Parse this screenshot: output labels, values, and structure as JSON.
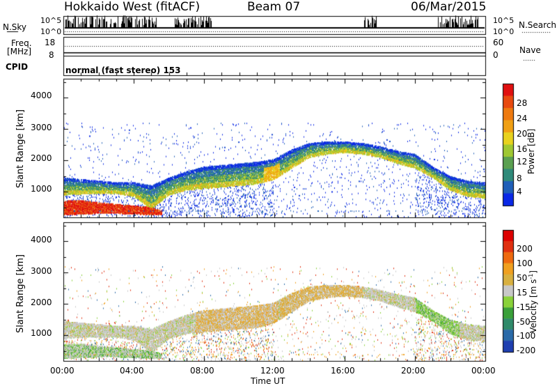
{
  "header": {
    "station": "Hokkaido West (fitACF)",
    "beam": "Beam 07",
    "date": "06/Mar/2015"
  },
  "status_panel": {
    "nsky_label": "N.Sky",
    "nsky_ticks": [
      "10^5",
      "10^0"
    ],
    "nsearch_label": "N.Search",
    "freq_label_1": "Freq.",
    "freq_label_2": "[MHz]",
    "freq_ticks": [
      "18",
      "8"
    ],
    "nave_label": "Nave",
    "nave_ticks": [
      "60",
      "0"
    ],
    "cpid_label": "CPID",
    "cpid_text": "normal (fast stereo) 153"
  },
  "axes": {
    "ylabel_top": "Slant Range [km]",
    "ylabel_bottom": "Slant Range [km]",
    "xlabel": "Time UT",
    "x_ticks": [
      "00:00",
      "04:00",
      "08:00",
      "12:00",
      "16:00",
      "20:00",
      "00:00"
    ],
    "y_ticks": [
      "1000",
      "2000",
      "3000",
      "4000"
    ]
  },
  "colorbars": {
    "power": {
      "label": "Power [dB]",
      "ticks": [
        "4",
        "8",
        "12",
        "16",
        "20",
        "24",
        "28"
      ],
      "colors": [
        "#0a28e6",
        "#1f5fb8",
        "#2f8a7a",
        "#5aa050",
        "#9fc832",
        "#e8d21e",
        "#f0a014",
        "#ee7a10",
        "#e84a10",
        "#e01010"
      ]
    },
    "velocity": {
      "label": "Velocity [m s",
      "label_sup": "-1",
      "label_end": "]",
      "ticks": [
        "200",
        "100",
        "50",
        "15",
        "-15",
        "-50",
        "-100",
        "-200"
      ],
      "colors": [
        "#1f3fb0",
        "#2a6aa8",
        "#2f8a6a",
        "#3aa03a",
        "#8ad23a",
        "#c8c8c8",
        "#d8b040",
        "#f0a020",
        "#ee6a10",
        "#e03010",
        "#dd0000"
      ]
    }
  },
  "chart_data": [
    {
      "type": "heatmap",
      "title": "Power",
      "xlabel": "Time UT",
      "ylabel": "Slant Range [km]",
      "xlim": [
        0,
        24
      ],
      "ylim": [
        180,
        4600
      ],
      "colorbar": "Power [dB]",
      "colorbar_range": [
        0,
        30
      ],
      "backscatter_band": {
        "time_h": [
          0,
          1,
          2,
          3,
          4,
          5,
          6,
          7,
          8,
          9,
          10,
          11,
          12,
          13,
          14,
          15,
          16,
          17,
          18,
          19,
          20,
          21,
          22,
          23,
          24
        ],
        "lower_km": [
          950,
          980,
          1000,
          1000,
          900,
          500,
          950,
          1100,
          1150,
          1200,
          1250,
          1300,
          1450,
          1800,
          2150,
          2250,
          2300,
          2250,
          2150,
          1950,
          1800,
          1500,
          1100,
          900,
          850
        ],
        "upper_km": [
          1400,
          1350,
          1300,
          1250,
          1250,
          1150,
          1400,
          1600,
          1750,
          1800,
          1850,
          1900,
          2000,
          2300,
          2500,
          2550,
          2550,
          2500,
          2400,
          2250,
          2150,
          1750,
          1450,
          1300,
          1250
        ]
      },
      "near_range_band": {
        "time_h": [
          0,
          1,
          2,
          3,
          4,
          5,
          5.6
        ],
        "lower_km": [
          250,
          280,
          300,
          300,
          280,
          250,
          250
        ],
        "upper_km": [
          700,
          720,
          650,
          600,
          550,
          500,
          400
        ]
      }
    },
    {
      "type": "heatmap",
      "title": "Velocity",
      "xlabel": "Time UT",
      "ylabel": "Slant Range [km]",
      "xlim": [
        0,
        24
      ],
      "ylim": [
        180,
        4600
      ],
      "colorbar": "Velocity [m s^-1]",
      "colorbar_range": [
        -200,
        200
      ],
      "backscatter_band": "same as Power panel",
      "dominant_velocity_range": [
        -15,
        15
      ]
    }
  ]
}
